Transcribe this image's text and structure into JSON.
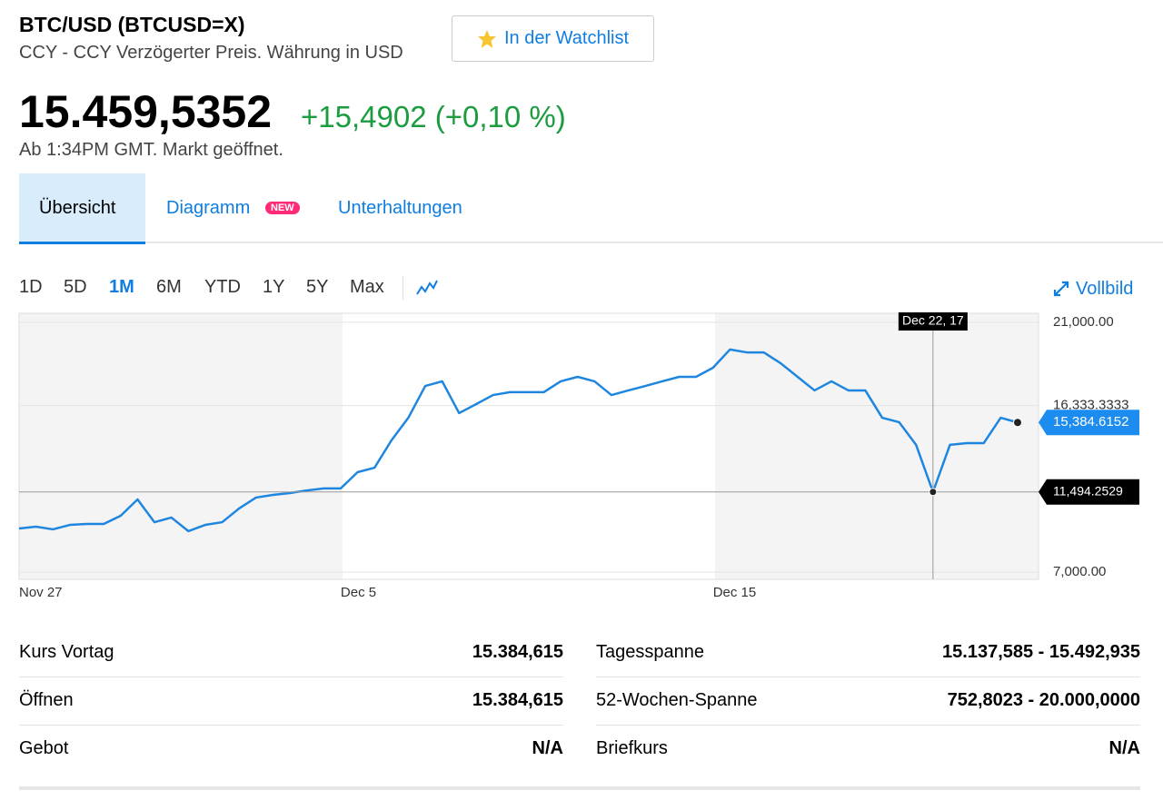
{
  "header": {
    "title": "BTC/USD (BTCUSD=X)",
    "subtitle": "CCY - CCY Verzögerter Preis. Währung in USD",
    "watchlist": "In der Watchlist",
    "price": "15.459,5352",
    "change": "+15,4902 (+0,10 %)",
    "status": "Ab 1:34PM GMT. Markt geöffnet."
  },
  "tabs": {
    "items": [
      "Übersicht",
      "Diagramm",
      "Unterhaltungen"
    ],
    "badge": "NEW"
  },
  "ranges": {
    "items": [
      "1D",
      "5D",
      "1M",
      "6M",
      "YTD",
      "1Y",
      "5Y",
      "Max"
    ],
    "active": "1M",
    "fullscreen": "Vollbild"
  },
  "chart": {
    "type": "line",
    "color": "#1f86e0",
    "categories": [
      "Nov 27",
      null,
      null,
      null,
      null,
      null,
      null,
      null,
      null,
      null,
      null,
      null,
      null,
      null,
      null,
      null,
      null,
      null,
      null,
      "Dec 5",
      null,
      null,
      null,
      null,
      null,
      null,
      null,
      null,
      null,
      null,
      null,
      null,
      null,
      null,
      null,
      null,
      null,
      null,
      null,
      null,
      null,
      "Dec 15",
      null,
      null,
      null,
      null,
      null,
      null,
      null,
      null,
      null,
      null,
      null,
      null,
      null,
      null,
      null,
      null,
      null,
      null
    ],
    "values": [
      9448,
      9550,
      9400,
      9650,
      9700,
      9700,
      10160,
      11075,
      9800,
      10060,
      9300,
      9650,
      9800,
      10570,
      11180,
      11330,
      11430,
      11580,
      11690,
      11690,
      12600,
      12850,
      14380,
      15650,
      17430,
      17690,
      15910,
      16410,
      16920,
      17080,
      17080,
      17080,
      17690,
      17940,
      17690,
      16920,
      17180,
      17430,
      17690,
      17940,
      17940,
      18450,
      19470,
      19310,
      19310,
      18700,
      17940,
      17180,
      17690,
      17180,
      17180,
      15650,
      15400,
      14130,
      11494.2529,
      14130,
      14230,
      14230,
      15650,
      15384.6152
    ],
    "ylim": [
      6600,
      21500
    ],
    "yticks": [
      {
        "value": 7000,
        "label": "7,000.00"
      },
      {
        "value": 16333.3333,
        "label": "16,333.3333"
      },
      {
        "value": 21000,
        "label": "21,000.00"
      }
    ],
    "grid": true,
    "crosshair": {
      "x_label": "Dec 22, 17",
      "value": {
        "value": 11494.2529,
        "label": "11,494.2529"
      }
    },
    "last": {
      "value": 15384.6152,
      "label": "15,384.6152"
    }
  },
  "stats": {
    "left": [
      [
        "Kurs Vortag",
        "15.384,615"
      ],
      [
        "Öffnen",
        "15.384,615"
      ],
      [
        "Gebot",
        "N/A"
      ]
    ],
    "right": [
      [
        "Tagesspanne",
        "15.137,585 - 15.492,935"
      ],
      [
        "52-Wochen-Spanne",
        "752,8023 - 20.000,0000"
      ],
      [
        "Briefkurs",
        "N/A"
      ]
    ]
  }
}
